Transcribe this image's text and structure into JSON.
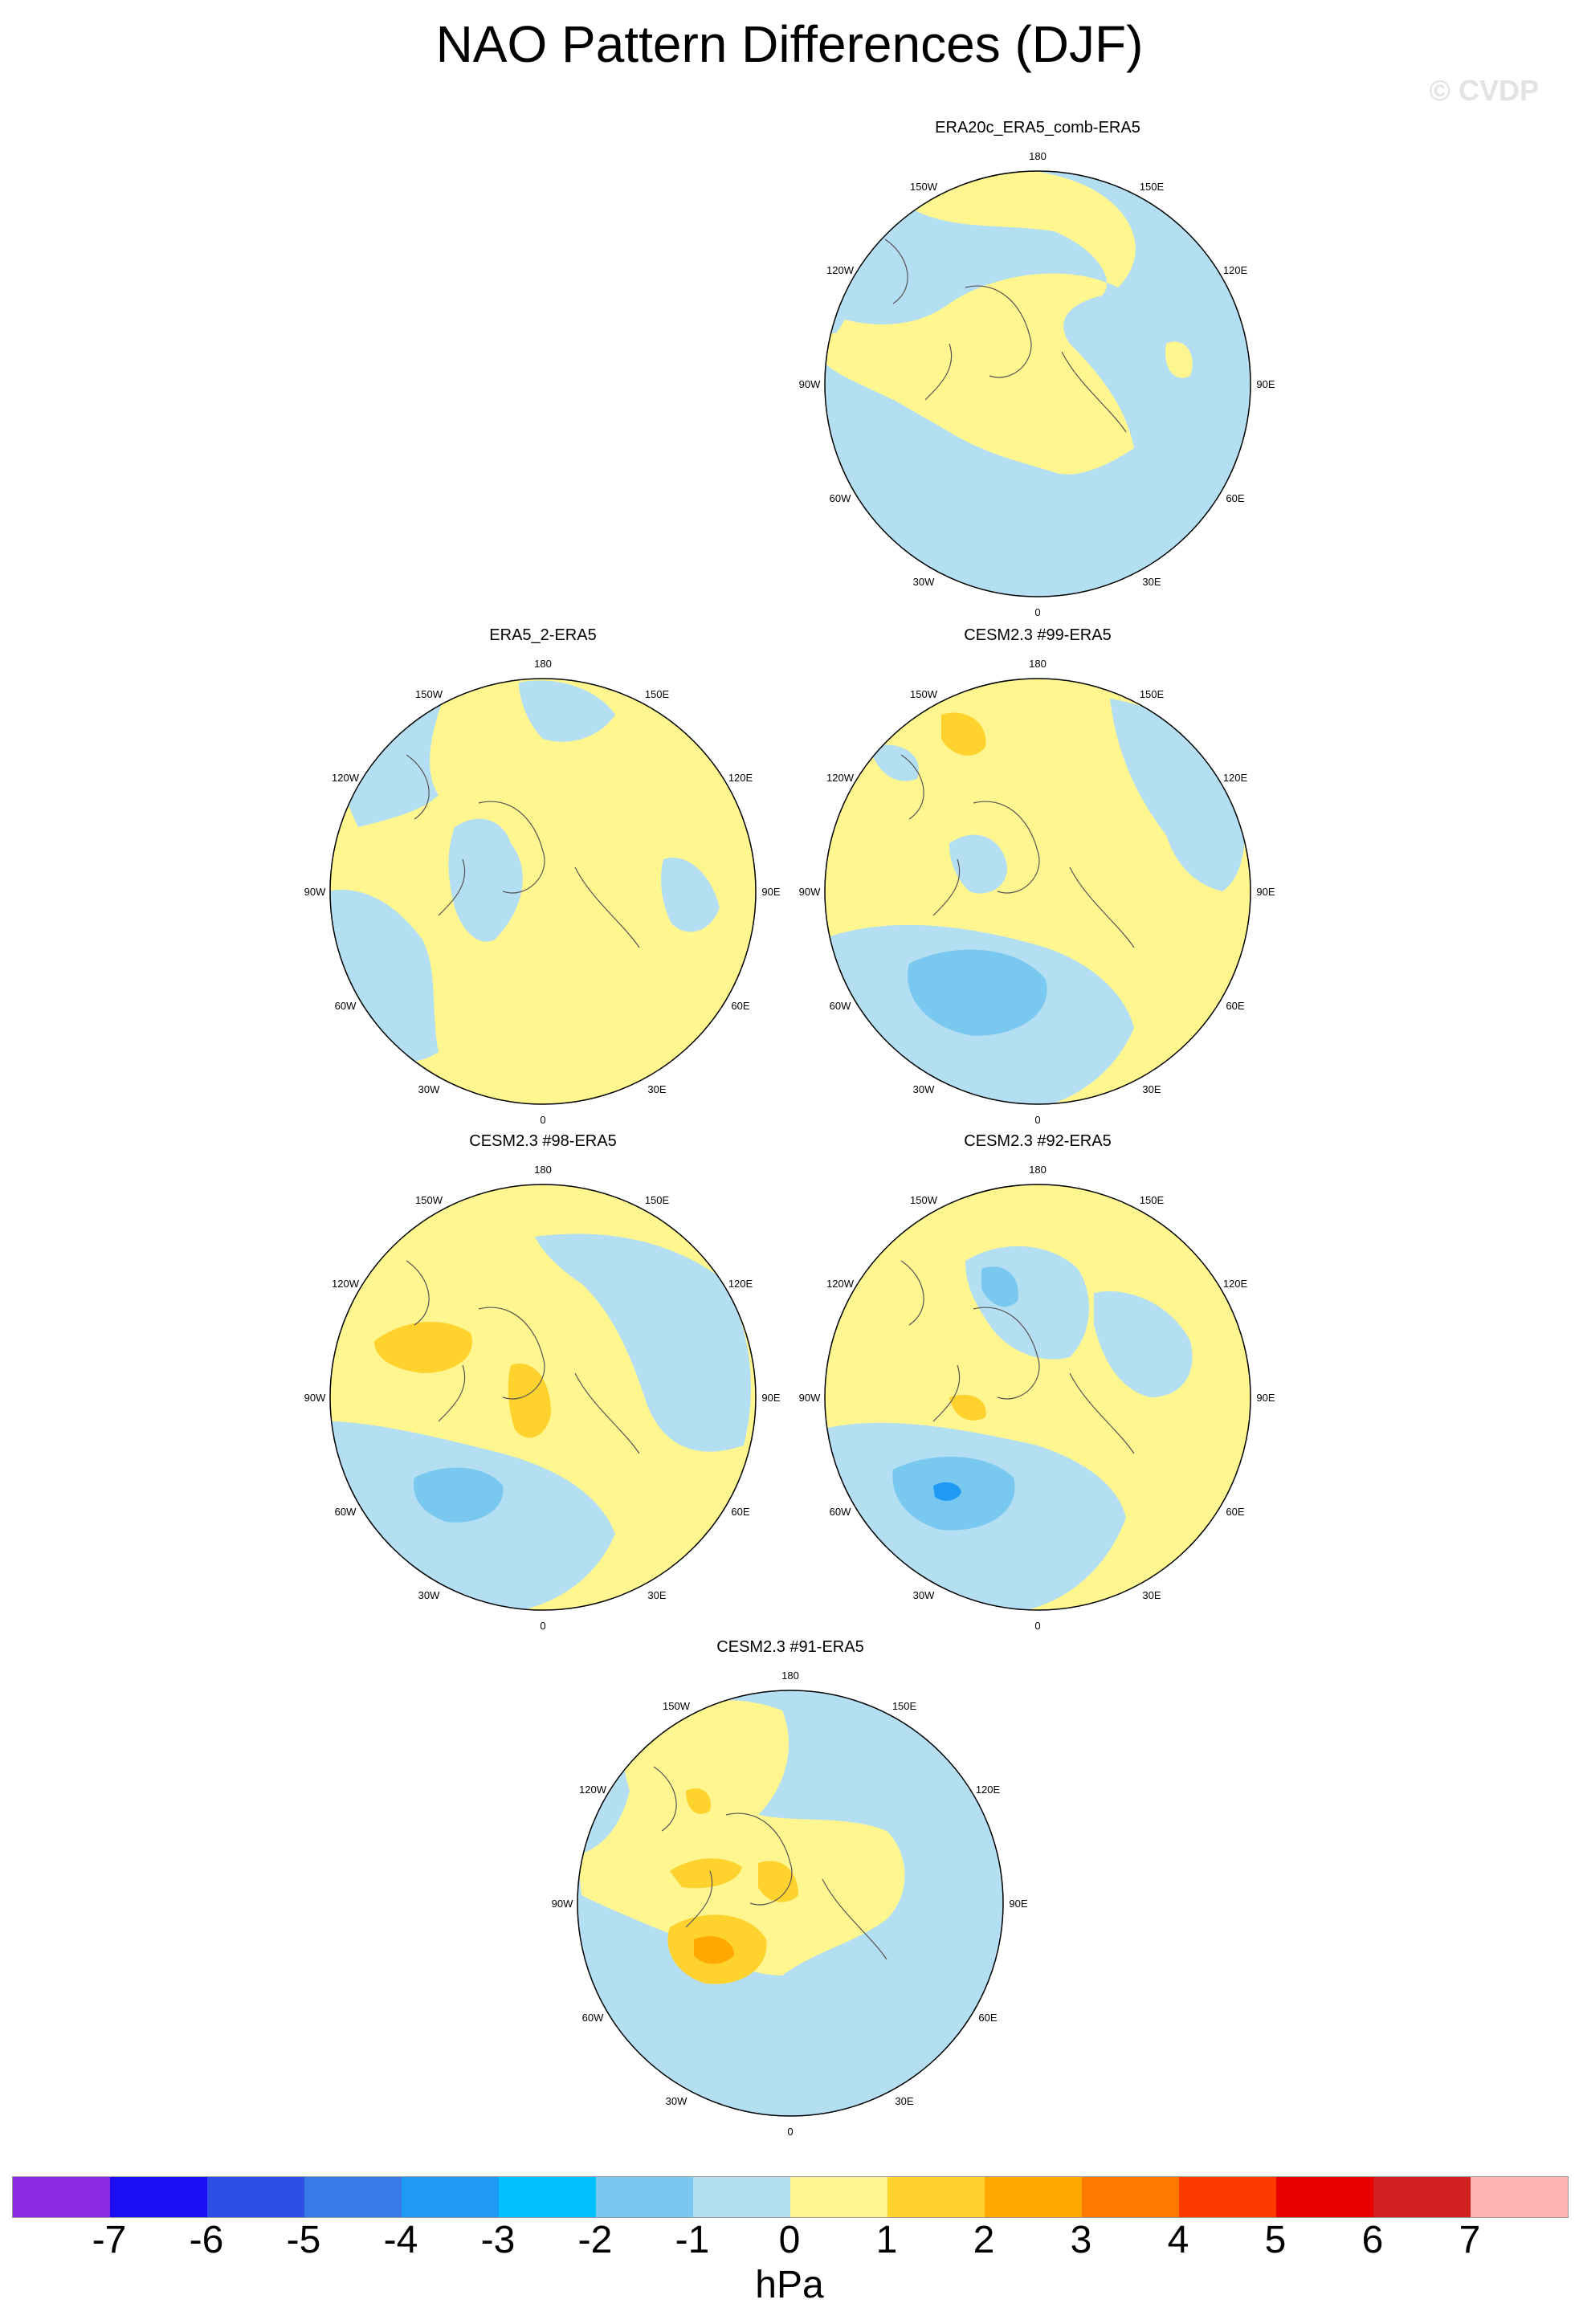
{
  "title": "NAO Pattern Differences (DJF)",
  "watermark": "© CVDP",
  "longitude_labels": [
    "180",
    "150E",
    "120E",
    "90E",
    "60E",
    "30E",
    "0",
    "30W",
    "60W",
    "90W",
    "120W",
    "150W"
  ],
  "panels": [
    {
      "title": "ERA20c_ERA5_comb-ERA5"
    },
    {
      "title": "ERA5_2-ERA5"
    },
    {
      "title": "CESM2.3 #99-ERA5"
    },
    {
      "title": "CESM2.3 #98-ERA5"
    },
    {
      "title": "CESM2.3 #92-ERA5"
    },
    {
      "title": "CESM2.3 #91-ERA5"
    }
  ],
  "colorbar": {
    "units": "hPa",
    "ticks": [
      "-7",
      "-6",
      "-5",
      "-4",
      "-3",
      "-2",
      "-1",
      "0",
      "1",
      "2",
      "3",
      "4",
      "5",
      "6",
      "7"
    ],
    "colors": [
      "#8a2be2",
      "#1c0ff5",
      "#2e4ee8",
      "#3a7ae8",
      "#1e9af5",
      "#00c0ff",
      "#78c8f0",
      "#b4def2",
      "#fff68f",
      "#ffd22e",
      "#ffa800",
      "#ff7800",
      "#ff3a00",
      "#e80000",
      "#d02020",
      "#ffb4b4"
    ]
  },
  "colors": {
    "negative": "#b4def2",
    "positive": "#fff68f",
    "neg2": "#78c8f0",
    "pos2": "#ffd22e",
    "pos3": "#ffa800"
  }
}
